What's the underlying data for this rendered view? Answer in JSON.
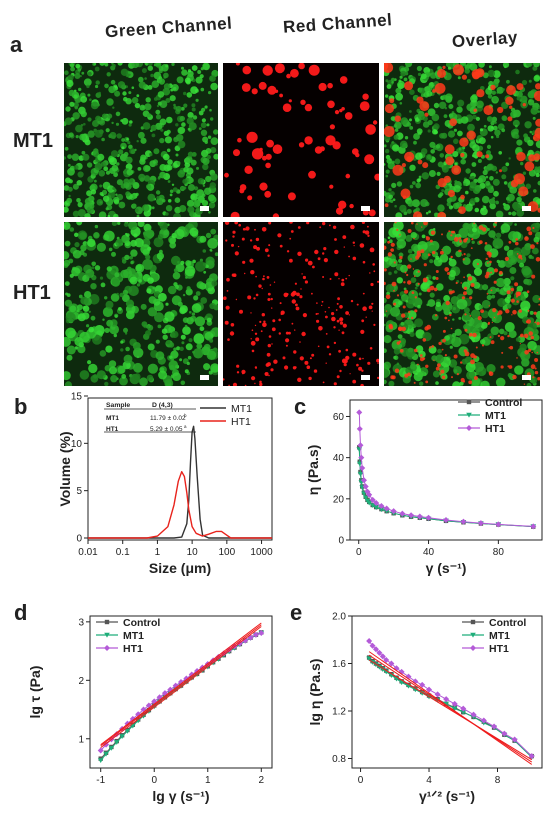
{
  "panel_a": {
    "letter": "a",
    "columns": [
      "Green Channel",
      "Red Channel",
      "Overlay"
    ],
    "rows": [
      "MT1",
      "HT1"
    ]
  },
  "colors": {
    "green": "#2ec22e",
    "red": "#ff2020",
    "mt1": "#333333",
    "ht1": "#e8231c",
    "control": "#555555",
    "mt1_c": "#1fae7a",
    "ht1_c": "#b45bd8",
    "fit": "#ee1c1c"
  },
  "chart_data": [
    {
      "id": "b",
      "letter": "b",
      "type": "line",
      "xscale": "log",
      "xlabel": "Size (μm)",
      "ylabel": "Volume (%)",
      "xlim": [
        0.01,
        2000
      ],
      "ylim": [
        0,
        15
      ],
      "xticks": [
        "0.01",
        "0.1",
        "1",
        "10",
        "100",
        "1000"
      ],
      "yticks": [
        0,
        5,
        10,
        15
      ],
      "legend": [
        "MT1",
        "HT1"
      ],
      "table": {
        "headers": [
          "Sample",
          "D (4,3)"
        ],
        "rows": [
          [
            "MT1",
            "11.79 ± 0.02",
            "b"
          ],
          [
            "HT1",
            "5.29 ± 0.05",
            "a"
          ]
        ]
      },
      "series": [
        {
          "name": "MT1",
          "x": [
            0.01,
            3.0,
            5,
            7,
            8,
            9,
            10,
            11,
            12,
            14,
            17,
            20,
            30,
            100,
            2000
          ],
          "y": [
            0,
            0,
            0.1,
            1.5,
            4,
            8,
            11.2,
            11.8,
            10.5,
            6.5,
            2,
            0.3,
            0,
            0,
            0
          ]
        },
        {
          "name": "HT1",
          "x": [
            0.01,
            0.5,
            1,
            2,
            3,
            4,
            5,
            6,
            7,
            8,
            10,
            13,
            20,
            30,
            50,
            70,
            100,
            130,
            2000
          ],
          "y": [
            0,
            0,
            0.2,
            1.2,
            3.5,
            6,
            7,
            6.5,
            4.8,
            3,
            1.2,
            0.5,
            0.2,
            0.4,
            0.7,
            0.7,
            0.3,
            0,
            0
          ]
        }
      ]
    },
    {
      "id": "c",
      "letter": "c",
      "type": "line",
      "xlabel": "γ (s⁻¹)",
      "ylabel": "η (Pa.s)",
      "xlim": [
        -5,
        105
      ],
      "ylim": [
        0,
        68
      ],
      "xticks": [
        0,
        40,
        80
      ],
      "yticks": [
        0,
        20,
        40,
        60
      ],
      "legend": [
        "Control",
        "MT1",
        "HT1"
      ],
      "series": [
        {
          "name": "Control",
          "x": [
            0.3,
            0.6,
            1,
            1.5,
            2,
            3,
            4,
            5,
            6,
            8,
            10,
            13,
            16,
            20,
            25,
            30,
            35,
            40,
            50,
            60,
            70,
            80,
            100
          ],
          "y": [
            45,
            38,
            33,
            29,
            26,
            23,
            21,
            19.5,
            18.5,
            17,
            16,
            15,
            14,
            13,
            12,
            11.3,
            10.8,
            10.3,
            9.3,
            8.6,
            8,
            7.5,
            6.5
          ]
        },
        {
          "name": "MT1",
          "x": [
            0.3,
            0.6,
            1,
            1.5,
            2,
            3,
            4,
            5,
            6,
            8,
            10,
            13,
            16,
            20,
            25,
            30,
            35,
            40,
            50,
            60,
            70,
            80,
            100
          ],
          "y": [
            44,
            37,
            32,
            28,
            25.5,
            22.5,
            20.5,
            19,
            18,
            16.8,
            15.8,
            14.8,
            14,
            13,
            12,
            11.3,
            10.8,
            10.3,
            9.3,
            8.6,
            8,
            7.5,
            6.5
          ]
        },
        {
          "name": "HT1",
          "x": [
            0.3,
            0.6,
            1,
            1.5,
            2,
            3,
            4,
            5,
            6,
            8,
            10,
            13,
            16,
            20,
            25,
            30,
            35,
            40,
            50,
            60,
            70,
            80,
            100
          ],
          "y": [
            62,
            54,
            46,
            40,
            35,
            29,
            26,
            23.5,
            22,
            19.5,
            18,
            16.5,
            15.3,
            14,
            12.8,
            12,
            11.4,
            10.8,
            9.7,
            8.9,
            8.2,
            7.6,
            6.6
          ]
        }
      ]
    },
    {
      "id": "d",
      "letter": "d",
      "type": "scatter",
      "xlabel": "lg γ (s⁻¹)",
      "ylabel": "lg τ (Pa)",
      "xlim": [
        -1.2,
        2.2
      ],
      "ylim": [
        0.5,
        3.1
      ],
      "xticks": [
        -1,
        0,
        1,
        2
      ],
      "yticks": [
        1,
        2,
        3
      ],
      "legend": [
        "Control",
        "MT1",
        "HT1"
      ],
      "series": [
        {
          "name": "Control",
          "x": [
            -1,
            -0.9,
            -0.8,
            -0.7,
            -0.6,
            -0.5,
            -0.4,
            -0.3,
            -0.2,
            -0.1,
            0,
            0.1,
            0.2,
            0.3,
            0.4,
            0.5,
            0.6,
            0.7,
            0.8,
            0.9,
            1,
            1.1,
            1.2,
            1.3,
            1.4,
            1.5,
            1.6,
            1.7,
            1.8,
            1.9,
            2
          ],
          "y": [
            0.66,
            0.76,
            0.86,
            0.96,
            1.06,
            1.15,
            1.24,
            1.33,
            1.41,
            1.49,
            1.57,
            1.64,
            1.71,
            1.78,
            1.85,
            1.91,
            1.98,
            2.05,
            2.11,
            2.17,
            2.24,
            2.31,
            2.37,
            2.43,
            2.5,
            2.56,
            2.62,
            2.68,
            2.73,
            2.78,
            2.82
          ]
        },
        {
          "name": "MT1",
          "x": [
            -1,
            -0.9,
            -0.8,
            -0.7,
            -0.6,
            -0.5,
            -0.4,
            -0.3,
            -0.2,
            -0.1,
            0,
            0.1,
            0.2,
            0.3,
            0.4,
            0.5,
            0.6,
            0.7,
            0.8,
            0.9,
            1,
            1.1,
            1.2,
            1.3,
            1.4,
            1.5,
            1.6,
            1.7,
            1.8,
            1.9,
            2
          ],
          "y": [
            0.63,
            0.74,
            0.84,
            0.94,
            1.04,
            1.13,
            1.22,
            1.31,
            1.39,
            1.47,
            1.55,
            1.63,
            1.7,
            1.77,
            1.84,
            1.9,
            1.97,
            2.04,
            2.1,
            2.17,
            2.23,
            2.3,
            2.36,
            2.43,
            2.49,
            2.55,
            2.61,
            2.67,
            2.72,
            2.77,
            2.81
          ]
        },
        {
          "name": "HT1",
          "x": [
            -1,
            -0.9,
            -0.8,
            -0.7,
            -0.6,
            -0.5,
            -0.4,
            -0.3,
            -0.2,
            -0.1,
            0,
            0.1,
            0.2,
            0.3,
            0.4,
            0.5,
            0.6,
            0.7,
            0.8,
            0.9,
            1,
            1.1,
            1.2,
            1.3,
            1.4,
            1.5,
            1.6,
            1.7,
            1.8,
            1.9,
            2
          ],
          "y": [
            0.8,
            0.9,
            0.99,
            1.08,
            1.17,
            1.26,
            1.34,
            1.42,
            1.5,
            1.57,
            1.64,
            1.71,
            1.78,
            1.84,
            1.91,
            1.97,
            2.03,
            2.1,
            2.16,
            2.22,
            2.28,
            2.34,
            2.4,
            2.46,
            2.52,
            2.58,
            2.63,
            2.68,
            2.73,
            2.78,
            2.81
          ]
        }
      ],
      "fits": [
        {
          "x": [
            -1,
            2
          ],
          "y": [
            0.9,
            2.98
          ]
        },
        {
          "x": [
            -1,
            2
          ],
          "y": [
            0.88,
            2.95
          ]
        },
        {
          "x": [
            -1,
            2
          ],
          "y": [
            0.85,
            2.92
          ]
        }
      ]
    },
    {
      "id": "e",
      "letter": "e",
      "type": "scatter",
      "xlabel": "γ¹ᐟ² (s⁻¹)",
      "ylabel": "lg η (Pa.s)",
      "xlim": [
        -0.5,
        10.6
      ],
      "ylim": [
        0.72,
        2.0
      ],
      "xticks": [
        0,
        4,
        8
      ],
      "yticks": [
        0.8,
        1.2,
        1.6,
        2.0
      ],
      "legend": [
        "Control",
        "MT1",
        "HT1"
      ],
      "series": [
        {
          "name": "Control",
          "x": [
            0.5,
            0.7,
            0.9,
            1.1,
            1.3,
            1.5,
            1.8,
            2.1,
            2.4,
            2.8,
            3.2,
            3.6,
            4.0,
            4.5,
            5.0,
            5.5,
            6.0,
            6.6,
            7.2,
            7.8,
            8.4,
            9.0,
            10
          ],
          "y": [
            1.65,
            1.62,
            1.6,
            1.58,
            1.56,
            1.54,
            1.51,
            1.48,
            1.45,
            1.42,
            1.39,
            1.36,
            1.33,
            1.3,
            1.26,
            1.23,
            1.19,
            1.15,
            1.11,
            1.06,
            1.0,
            0.95,
            0.82
          ]
        },
        {
          "name": "MT1",
          "x": [
            0.5,
            0.7,
            0.9,
            1.1,
            1.3,
            1.5,
            1.8,
            2.1,
            2.4,
            2.8,
            3.2,
            3.6,
            4.0,
            4.5,
            5.0,
            5.5,
            6.0,
            6.6,
            7.2,
            7.8,
            8.4,
            9.0,
            10
          ],
          "y": [
            1.64,
            1.61,
            1.59,
            1.57,
            1.55,
            1.53,
            1.5,
            1.47,
            1.44,
            1.41,
            1.38,
            1.35,
            1.32,
            1.29,
            1.26,
            1.22,
            1.19,
            1.15,
            1.1,
            1.06,
            1.0,
            0.95,
            0.81
          ]
        },
        {
          "name": "HT1",
          "x": [
            0.5,
            0.7,
            0.9,
            1.1,
            1.3,
            1.5,
            1.8,
            2.1,
            2.4,
            2.8,
            3.2,
            3.6,
            4.0,
            4.5,
            5.0,
            5.5,
            6.0,
            6.6,
            7.2,
            7.8,
            8.4,
            9.0,
            10
          ],
          "y": [
            1.79,
            1.75,
            1.72,
            1.69,
            1.66,
            1.63,
            1.6,
            1.56,
            1.53,
            1.49,
            1.45,
            1.42,
            1.38,
            1.34,
            1.3,
            1.26,
            1.22,
            1.17,
            1.12,
            1.07,
            1.01,
            0.96,
            0.82
          ]
        }
      ],
      "fits": [
        {
          "x": [
            0.5,
            10
          ],
          "y": [
            1.7,
            0.75
          ]
        },
        {
          "x": [
            0.5,
            10
          ],
          "y": [
            1.67,
            0.77
          ]
        },
        {
          "x": [
            0.5,
            10
          ],
          "y": [
            1.63,
            0.79
          ]
        }
      ]
    }
  ]
}
